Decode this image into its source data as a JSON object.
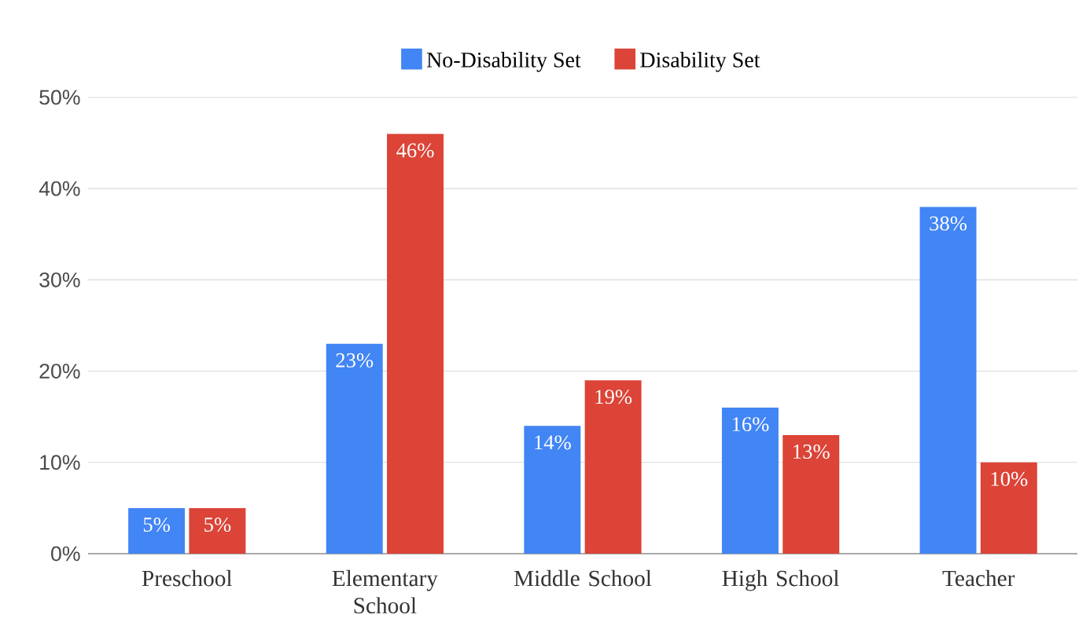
{
  "chart_data": {
    "type": "bar",
    "categories": [
      "Preschool",
      "Elementary School",
      "Middle School",
      "High School",
      "Teacher"
    ],
    "series": [
      {
        "name": "No-Disability Set",
        "color": "#4285f4",
        "values": [
          5,
          23,
          14,
          16,
          38
        ],
        "value_labels": [
          "5%",
          "23%",
          "14%",
          "16%",
          "38%"
        ]
      },
      {
        "name": "Disability Set",
        "color": "#db4437",
        "values": [
          5,
          46,
          19,
          13,
          10
        ],
        "value_labels": [
          "5%",
          "46%",
          "19%",
          "13%",
          "10%"
        ]
      }
    ],
    "ylim": [
      0,
      50
    ],
    "yticks": [
      {
        "value": 0,
        "label": "0%"
      },
      {
        "value": 10,
        "label": "10%"
      },
      {
        "value": 20,
        "label": "20%"
      },
      {
        "value": 30,
        "label": "30%"
      },
      {
        "value": 40,
        "label": "40%"
      },
      {
        "value": 50,
        "label": "50%"
      }
    ],
    "grid": "y",
    "legend": "top"
  }
}
